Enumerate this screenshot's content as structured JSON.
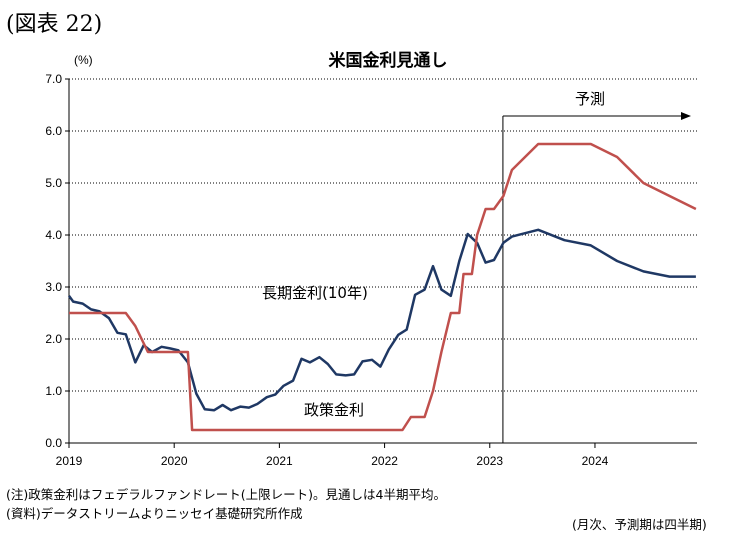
{
  "figure_label": "(図表 22)",
  "notes": {
    "note1": "(注)政策金利はフェデラルファンドレート(上限レート)。見通しは4半期平均。",
    "note2": "(資料)データストリームよりニッセイ基礎研究所作成",
    "note3": "(月次、予測期は四半期)"
  },
  "chart_data": {
    "type": "line",
    "title": "米国金利見通し",
    "ylabel": "(%)",
    "xlabel": "",
    "ylim": [
      0,
      7
    ],
    "yticks": [
      "0.0",
      "1.0",
      "2.0",
      "3.0",
      "4.0",
      "5.0",
      "6.0",
      "7.0"
    ],
    "xlim": [
      2019.0,
      2024.97
    ],
    "xticks": [
      {
        "value": 2019.0,
        "label": "2019"
      },
      {
        "value": 2020.0,
        "label": "2020"
      },
      {
        "value": 2021.0,
        "label": "2021"
      },
      {
        "value": 2022.0,
        "label": "2022"
      },
      {
        "value": 2023.0,
        "label": "2023"
      },
      {
        "value": 2024.0,
        "label": "2024"
      }
    ],
    "grid": "horizontal dotted",
    "forecast": {
      "start": 2023.125,
      "label": "予測"
    },
    "series": [
      {
        "name": "長期金利(10年)",
        "color": "#1f3864",
        "points": [
          [
            2019.0,
            2.83
          ],
          [
            2019.04,
            2.72
          ],
          [
            2019.13,
            2.68
          ],
          [
            2019.21,
            2.57
          ],
          [
            2019.29,
            2.53
          ],
          [
            2019.38,
            2.4
          ],
          [
            2019.46,
            2.12
          ],
          [
            2019.54,
            2.09
          ],
          [
            2019.63,
            1.55
          ],
          [
            2019.71,
            1.88
          ],
          [
            2019.79,
            1.75
          ],
          [
            2019.88,
            1.85
          ],
          [
            2019.96,
            1.82
          ],
          [
            2020.04,
            1.78
          ],
          [
            2020.13,
            1.55
          ],
          [
            2020.21,
            0.95
          ],
          [
            2020.29,
            0.65
          ],
          [
            2020.38,
            0.63
          ],
          [
            2020.46,
            0.73
          ],
          [
            2020.54,
            0.63
          ],
          [
            2020.63,
            0.7
          ],
          [
            2020.71,
            0.68
          ],
          [
            2020.79,
            0.75
          ],
          [
            2020.88,
            0.88
          ],
          [
            2020.96,
            0.93
          ],
          [
            2021.04,
            1.1
          ],
          [
            2021.13,
            1.2
          ],
          [
            2021.21,
            1.62
          ],
          [
            2021.29,
            1.55
          ],
          [
            2021.38,
            1.65
          ],
          [
            2021.46,
            1.52
          ],
          [
            2021.54,
            1.32
          ],
          [
            2021.63,
            1.3
          ],
          [
            2021.71,
            1.32
          ],
          [
            2021.79,
            1.57
          ],
          [
            2021.88,
            1.6
          ],
          [
            2021.96,
            1.47
          ],
          [
            2022.04,
            1.8
          ],
          [
            2022.13,
            2.08
          ],
          [
            2022.21,
            2.18
          ],
          [
            2022.29,
            2.85
          ],
          [
            2022.38,
            2.95
          ],
          [
            2022.46,
            3.4
          ],
          [
            2022.54,
            2.95
          ],
          [
            2022.63,
            2.83
          ],
          [
            2022.71,
            3.5
          ],
          [
            2022.79,
            4.02
          ],
          [
            2022.88,
            3.85
          ],
          [
            2022.96,
            3.47
          ],
          [
            2023.04,
            3.52
          ],
          [
            2023.13,
            3.85
          ],
          [
            2023.21,
            3.97
          ],
          [
            2023.46,
            4.1
          ],
          [
            2023.71,
            3.9
          ],
          [
            2023.96,
            3.8
          ],
          [
            2024.21,
            3.5
          ],
          [
            2024.46,
            3.3
          ],
          [
            2024.71,
            3.2
          ],
          [
            2024.96,
            3.2
          ]
        ]
      },
      {
        "name": "政策金利",
        "color": "#c0504d",
        "points": [
          [
            2019.0,
            2.5
          ],
          [
            2019.54,
            2.5
          ],
          [
            2019.63,
            2.25
          ],
          [
            2019.75,
            1.75
          ],
          [
            2020.13,
            1.75
          ],
          [
            2020.17,
            0.25
          ],
          [
            2022.17,
            0.25
          ],
          [
            2022.25,
            0.5
          ],
          [
            2022.38,
            0.5
          ],
          [
            2022.46,
            1.0
          ],
          [
            2022.54,
            1.75
          ],
          [
            2022.63,
            2.5
          ],
          [
            2022.71,
            2.5
          ],
          [
            2022.75,
            3.25
          ],
          [
            2022.83,
            3.25
          ],
          [
            2022.88,
            4.0
          ],
          [
            2022.96,
            4.5
          ],
          [
            2023.04,
            4.5
          ],
          [
            2023.13,
            4.75
          ],
          [
            2023.21,
            5.25
          ],
          [
            2023.46,
            5.75
          ],
          [
            2023.71,
            5.75
          ],
          [
            2023.96,
            5.75
          ],
          [
            2024.21,
            5.5
          ],
          [
            2024.46,
            5.0
          ],
          [
            2024.71,
            4.75
          ],
          [
            2024.96,
            4.5
          ]
        ]
      }
    ]
  }
}
